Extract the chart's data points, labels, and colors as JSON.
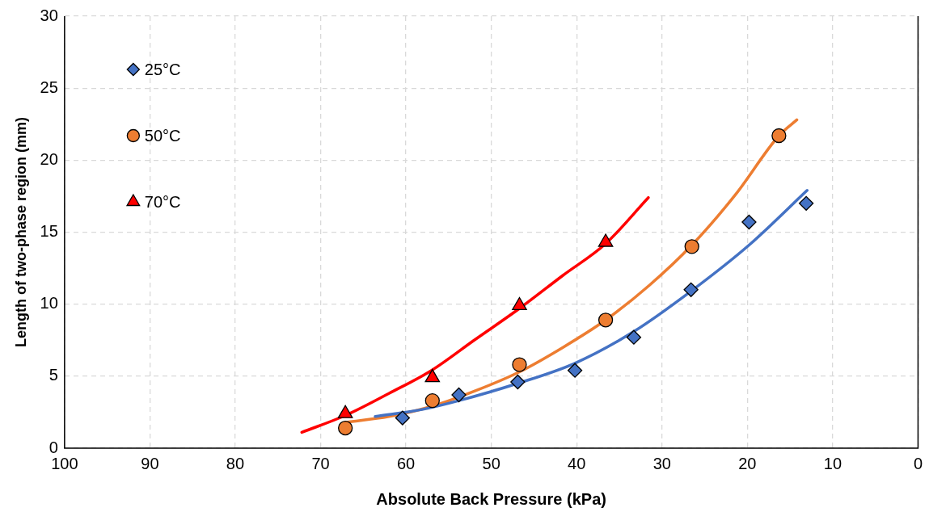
{
  "chart_data": {
    "type": "scatter",
    "xlabel": "Absolute Back Pressure (kPa)",
    "ylabel": "Length of two-phase region (mm)",
    "xlim": [
      100,
      0
    ],
    "xticks": [
      100,
      90,
      80,
      70,
      60,
      50,
      40,
      30,
      20,
      10,
      0
    ],
    "ylim": [
      0,
      30
    ],
    "yticks": [
      0,
      5,
      10,
      15,
      20,
      25,
      30
    ],
    "grid": true,
    "legend": "top left",
    "series": [
      {
        "name": "25°C",
        "marker": "diamond",
        "color": "#4472c4",
        "x": [
          60.4,
          53.8,
          46.9,
          40.2,
          33.3,
          26.6,
          19.8,
          13.1
        ],
        "values": [
          2.1,
          3.7,
          4.6,
          5.4,
          7.7,
          11,
          15.7,
          17
        ]
      },
      {
        "name": "50°C",
        "marker": "circle",
        "color": "#ed7d31",
        "x": [
          67.1,
          56.9,
          46.7,
          36.6,
          26.5,
          16.3
        ],
        "values": [
          1.4,
          3.3,
          5.8,
          8.9,
          14,
          21.7
        ]
      },
      {
        "name": "70°C",
        "marker": "triangle",
        "color": "#ff0000",
        "x": [
          67.1,
          56.9,
          46.7,
          36.6
        ],
        "values": [
          2.4,
          4.9,
          9.9,
          14.3
        ]
      },
      {
        "type": "line",
        "marker": "none",
        "color": "#4472c4",
        "x": [
          63.6,
          58,
          53.8,
          46.9,
          40.2,
          33.3,
          26.6,
          19.8,
          13
        ],
        "values": [
          2.2,
          2.7,
          3.3,
          4.5,
          5.9,
          8.1,
          10.9,
          14.1,
          17.9
        ]
      },
      {
        "type": "line",
        "marker": "none",
        "color": "#ed7d31",
        "x": [
          67,
          62,
          57,
          51.8,
          46.7,
          41.6,
          36.6,
          31.5,
          26.5,
          21.4,
          16.3,
          14.2
        ],
        "values": [
          1.8,
          2.2,
          2.9,
          4,
          5.3,
          7,
          8.9,
          11.3,
          14.1,
          17.6,
          21.7,
          22.8
        ]
      },
      {
        "type": "line",
        "marker": "none",
        "color": "#ff0000",
        "x": [
          72.2,
          67,
          62,
          57,
          52,
          46.7,
          41.6,
          36.6,
          31.6
        ],
        "values": [
          1.1,
          2.3,
          3.8,
          5.4,
          7.5,
          9.7,
          12,
          14.2,
          17.4
        ]
      }
    ]
  }
}
